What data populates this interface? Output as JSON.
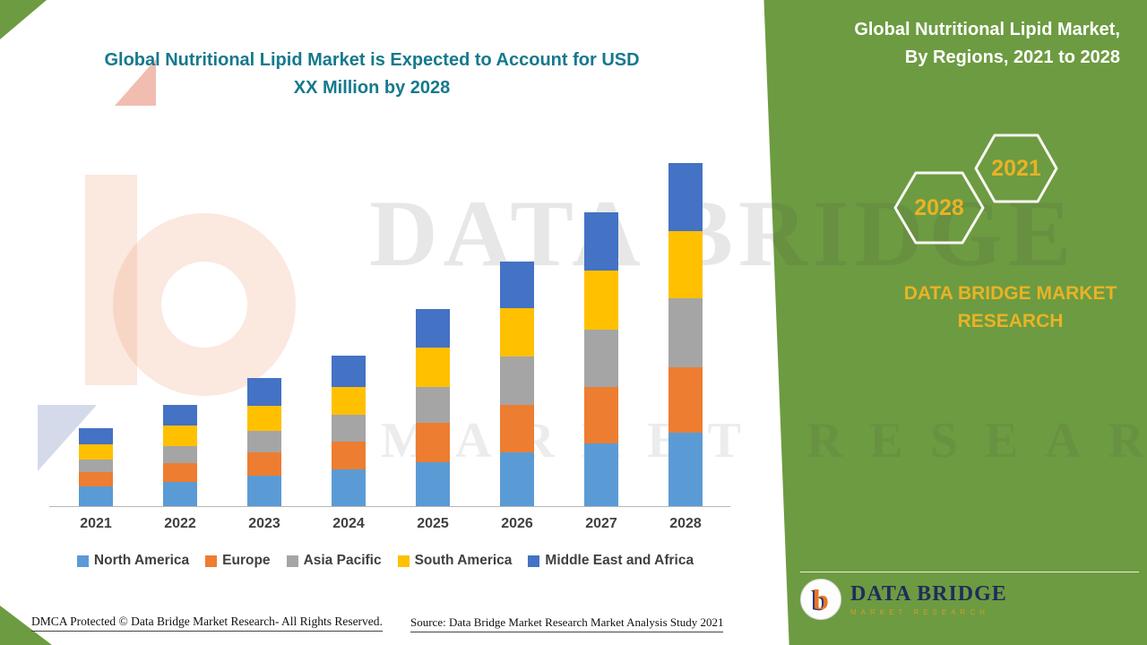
{
  "colors": {
    "green_panel": "#6d9b41",
    "title_teal": "#15798d",
    "gold": "#e8b325",
    "axis_label_gray": "#404040",
    "logo_navy": "#1f2d5a",
    "logo_orange": "#e87722"
  },
  "left_title": {
    "line1": "Global Nutritional Lipid Market is Expected to Account for USD",
    "line2": "XX Million by 2028"
  },
  "right_panel": {
    "title_line1": "Global Nutritional Lipid Market,",
    "title_line2": "By Regions, 2021 to 2028",
    "hexagon_back_year": "2028",
    "hexagon_front_year": "2021",
    "brand_line1": "DATA BRIDGE MARKET",
    "brand_line2": "RESEARCH"
  },
  "watermark": {
    "line1": "DATA BRIDGE",
    "line2": "MARKET RESEARCH"
  },
  "logo": {
    "glyph": "b",
    "name": "DATA BRIDGE",
    "tagline": "MARKET RESEARCH"
  },
  "footer": {
    "dmca": "DMCA Protected © Data Bridge Market Research- All Rights Reserved.",
    "source": "Source: Data Bridge Market Research Market Analysis Study 2021"
  },
  "chart_data": {
    "type": "bar",
    "stacked": true,
    "title": "Global Nutritional Lipid Market, By Regions, 2021 to 2028",
    "xlabel": "",
    "ylabel": "",
    "y_axis_visible": false,
    "legend_position": "bottom",
    "note": "Y-axis unlabeled in source (values shown as USD XX Million); segment values estimated from bar heights, relative index units",
    "ylim": [
      0,
      400
    ],
    "categories": [
      "2021",
      "2022",
      "2023",
      "2024",
      "2025",
      "2026",
      "2027",
      "2028"
    ],
    "series": [
      {
        "name": "North America",
        "color": "#5b9bd5",
        "values": [
          22,
          27,
          34,
          41,
          49,
          60,
          70,
          82
        ]
      },
      {
        "name": "Europe",
        "color": "#ed7d31",
        "values": [
          16,
          21,
          26,
          31,
          44,
          53,
          63,
          73
        ]
      },
      {
        "name": "Asia Pacific",
        "color": "#a5a5a5",
        "values": [
          14,
          19,
          24,
          30,
          40,
          54,
          64,
          77
        ]
      },
      {
        "name": "South America",
        "color": "#ffc000",
        "values": [
          17,
          23,
          28,
          31,
          44,
          54,
          66,
          75
        ]
      },
      {
        "name": "Middle East and Africa",
        "color": "#4472c4",
        "values": [
          18,
          23,
          31,
          35,
          43,
          52,
          65,
          76
        ]
      }
    ]
  }
}
